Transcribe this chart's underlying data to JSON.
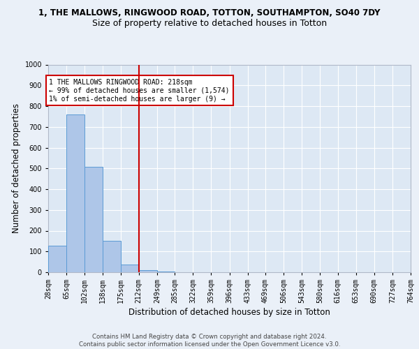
{
  "title1": "1, THE MALLOWS, RINGWOOD ROAD, TOTTON, SOUTHAMPTON, SO40 7DY",
  "title2": "Size of property relative to detached houses in Totton",
  "xlabel": "Distribution of detached houses by size in Totton",
  "ylabel": "Number of detached properties",
  "footnote": "Contains HM Land Registry data © Crown copyright and database right 2024.\nContains public sector information licensed under the Open Government Licence v3.0.",
  "bar_edges": [
    28,
    65,
    102,
    138,
    175,
    212,
    249,
    285,
    322,
    359,
    396,
    433,
    469,
    506,
    543,
    580,
    616,
    653,
    690,
    727,
    764
  ],
  "bar_heights": [
    128,
    760,
    507,
    152,
    37,
    9,
    5,
    0,
    0,
    0,
    0,
    0,
    0,
    0,
    0,
    0,
    0,
    0,
    0,
    0
  ],
  "bar_color": "#aec6e8",
  "bar_edge_color": "#5b9bd5",
  "vline_x": 212,
  "vline_color": "#cc0000",
  "annotation_text": "1 THE MALLOWS RINGWOOD ROAD: 218sqm\n← 99% of detached houses are smaller (1,574)\n1% of semi-detached houses are larger (9) →",
  "annotation_box_color": "#cc0000",
  "ylim": [
    0,
    1000
  ],
  "yticks": [
    0,
    100,
    200,
    300,
    400,
    500,
    600,
    700,
    800,
    900,
    1000
  ],
  "bg_color": "#eaf0f8",
  "axes_bg_color": "#dde8f4",
  "grid_color": "#ffffff",
  "title1_fontsize": 8.5,
  "title2_fontsize": 9,
  "tick_fontsize": 7,
  "label_fontsize": 8.5,
  "footer_fontsize": 6.2
}
